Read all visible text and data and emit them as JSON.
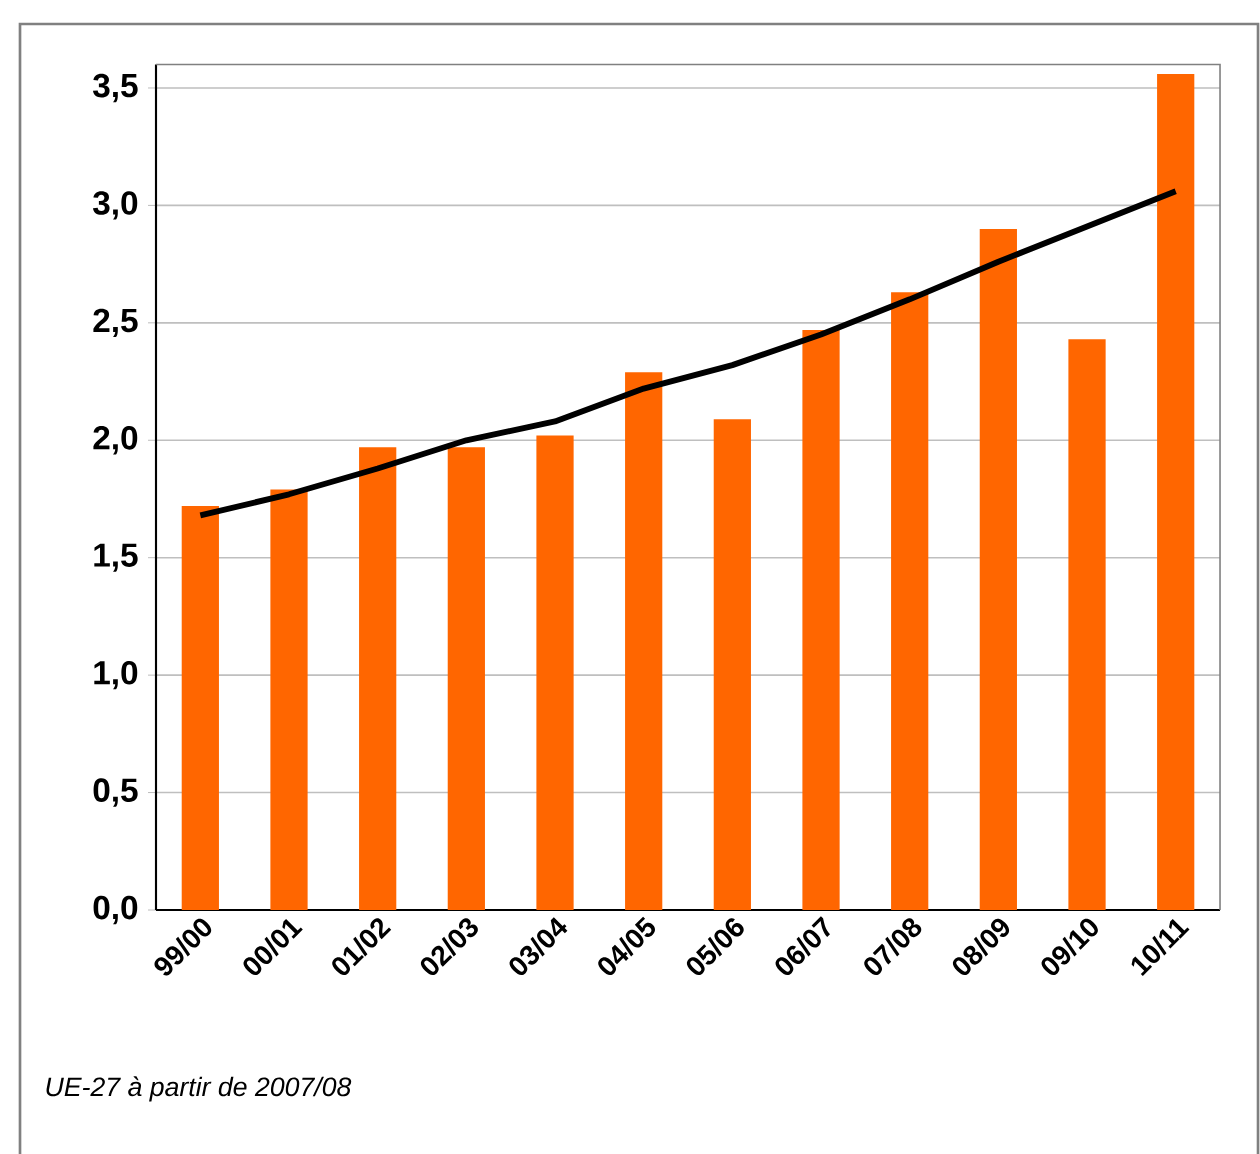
{
  "chart_data": {
    "type": "bar",
    "categories": [
      "99/00",
      "00/01",
      "01/02",
      "02/03",
      "03/04",
      "04/05",
      "05/06",
      "06/07",
      "07/08",
      "08/09",
      "09/10",
      "10/11"
    ],
    "series": [
      {
        "color": "#ff6600",
        "values": [
          1.72,
          1.79,
          1.97,
          1.97,
          2.02,
          2.29,
          2.09,
          2.47,
          2.63,
          2.9,
          2.43,
          3.56
        ]
      },
      {
        "type": "line",
        "color": "#000000",
        "values": [
          1.68,
          1.77,
          1.88,
          2.0,
          2.08,
          2.22,
          2.32,
          2.45,
          2.6,
          2.76,
          2.91,
          3.06
        ]
      }
    ],
    "ylim": [
      0,
      3.6
    ],
    "yticks": [
      {
        "value": 0,
        "label": "0,0"
      },
      {
        "value": 0.5,
        "label": "0,5"
      },
      {
        "value": 1,
        "label": "1,0"
      },
      {
        "value": 1.5,
        "label": "1,5"
      },
      {
        "value": 2,
        "label": "2,0"
      },
      {
        "value": 2.5,
        "label": "2,5"
      },
      {
        "value": 3,
        "label": "3,0"
      },
      {
        "value": 3.5,
        "label": "3,5"
      }
    ],
    "grid": "y",
    "annotations": [
      "UE-27 à partir de 2007/08"
    ]
  }
}
